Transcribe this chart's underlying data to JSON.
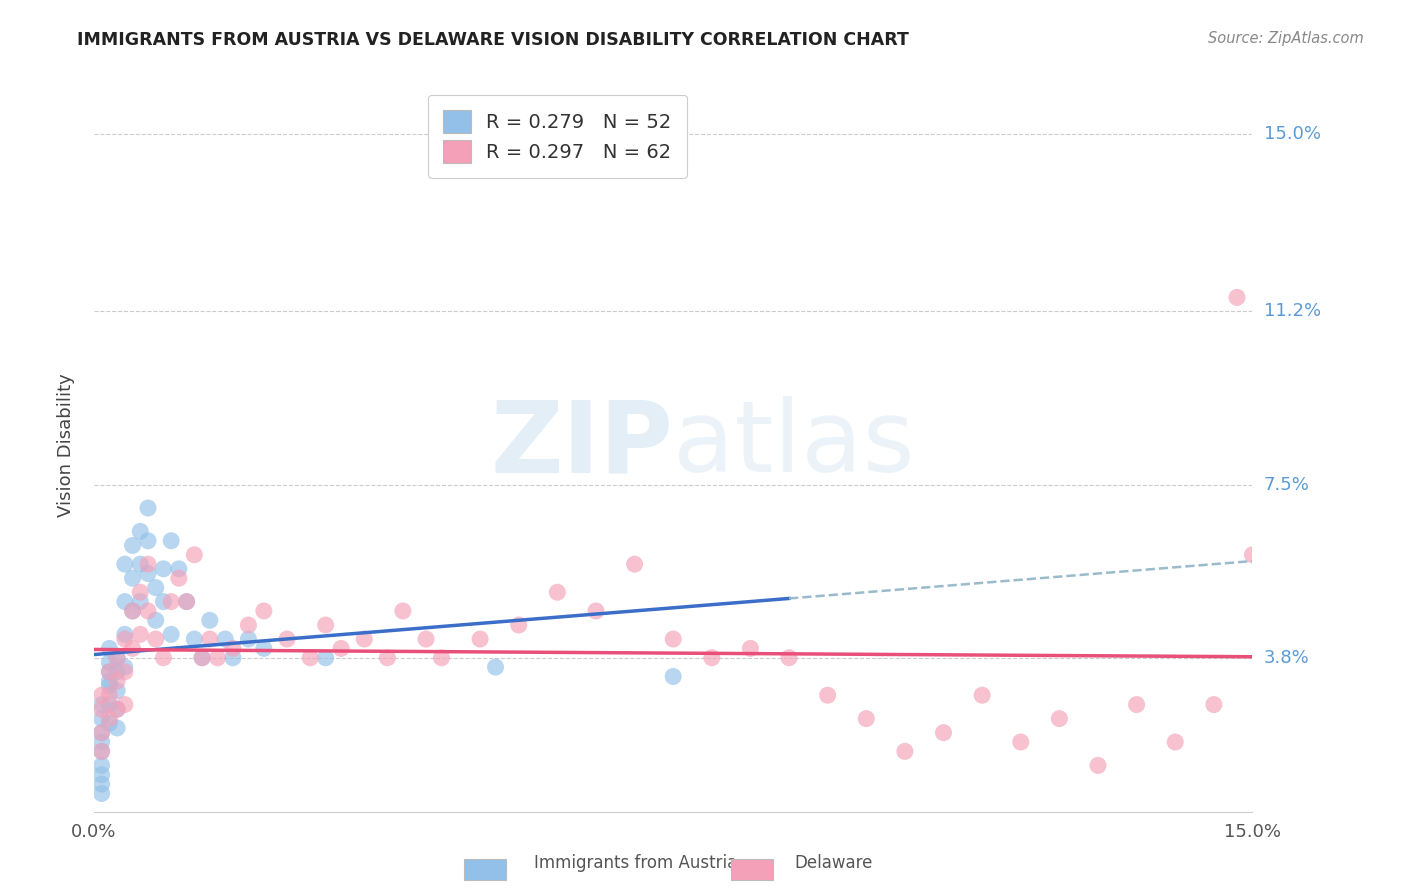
{
  "title": "IMMIGRANTS FROM AUSTRIA VS DELAWARE VISION DISABILITY CORRELATION CHART",
  "source": "Source: ZipAtlas.com",
  "ylabel": "Vision Disability",
  "ytick_labels": [
    "3.8%",
    "7.5%",
    "11.2%",
    "15.0%"
  ],
  "ytick_values": [
    0.038,
    0.075,
    0.112,
    0.15
  ],
  "xmin": 0.0,
  "xmax": 0.15,
  "ymin": 0.005,
  "ymax": 0.162,
  "color_blue": "#92C0E8",
  "color_pink": "#F4A0B8",
  "color_blue_line": "#3B6EC8",
  "color_pink_line": "#E8507A",
  "color_dash": "#99BBCC",
  "color_title": "#222222",
  "color_tick_right": "#5B9BD5",
  "color_source": "#888888",
  "background_color": "#FFFFFF",
  "watermark_color": "#C8DFF0",
  "blue_line_x_end": 0.09,
  "scatter_blue_x": [
    0.001,
    0.001,
    0.001,
    0.001,
    0.001,
    0.001,
    0.001,
    0.001,
    0.001,
    0.002,
    0.002,
    0.002,
    0.002,
    0.002,
    0.002,
    0.002,
    0.003,
    0.003,
    0.003,
    0.003,
    0.003,
    0.004,
    0.004,
    0.004,
    0.004,
    0.005,
    0.005,
    0.005,
    0.006,
    0.006,
    0.006,
    0.007,
    0.007,
    0.007,
    0.008,
    0.008,
    0.009,
    0.009,
    0.01,
    0.01,
    0.011,
    0.012,
    0.013,
    0.014,
    0.015,
    0.017,
    0.018,
    0.02,
    0.022,
    0.03,
    0.052,
    0.075
  ],
  "scatter_blue_y": [
    0.028,
    0.025,
    0.022,
    0.02,
    0.018,
    0.015,
    0.013,
    0.011,
    0.009,
    0.035,
    0.032,
    0.028,
    0.024,
    0.04,
    0.037,
    0.033,
    0.038,
    0.035,
    0.031,
    0.027,
    0.023,
    0.058,
    0.05,
    0.043,
    0.036,
    0.062,
    0.055,
    0.048,
    0.065,
    0.058,
    0.05,
    0.07,
    0.063,
    0.056,
    0.053,
    0.046,
    0.057,
    0.05,
    0.063,
    0.043,
    0.057,
    0.05,
    0.042,
    0.038,
    0.046,
    0.042,
    0.038,
    0.042,
    0.04,
    0.038,
    0.036,
    0.034
  ],
  "scatter_pink_x": [
    0.001,
    0.001,
    0.001,
    0.001,
    0.002,
    0.002,
    0.002,
    0.003,
    0.003,
    0.003,
    0.004,
    0.004,
    0.004,
    0.005,
    0.005,
    0.006,
    0.006,
    0.007,
    0.007,
    0.008,
    0.009,
    0.01,
    0.011,
    0.012,
    0.013,
    0.014,
    0.015,
    0.016,
    0.018,
    0.02,
    0.022,
    0.025,
    0.028,
    0.03,
    0.032,
    0.035,
    0.038,
    0.04,
    0.043,
    0.045,
    0.05,
    0.055,
    0.06,
    0.065,
    0.07,
    0.075,
    0.08,
    0.085,
    0.09,
    0.095,
    0.1,
    0.105,
    0.11,
    0.115,
    0.12,
    0.125,
    0.13,
    0.135,
    0.14,
    0.145,
    0.148,
    0.15
  ],
  "scatter_pink_y": [
    0.03,
    0.027,
    0.022,
    0.018,
    0.035,
    0.03,
    0.025,
    0.038,
    0.033,
    0.027,
    0.042,
    0.035,
    0.028,
    0.048,
    0.04,
    0.052,
    0.043,
    0.058,
    0.048,
    0.042,
    0.038,
    0.05,
    0.055,
    0.05,
    0.06,
    0.038,
    0.042,
    0.038,
    0.04,
    0.045,
    0.048,
    0.042,
    0.038,
    0.045,
    0.04,
    0.042,
    0.038,
    0.048,
    0.042,
    0.038,
    0.042,
    0.045,
    0.052,
    0.048,
    0.058,
    0.042,
    0.038,
    0.04,
    0.038,
    0.03,
    0.025,
    0.018,
    0.022,
    0.03,
    0.02,
    0.025,
    0.015,
    0.028,
    0.02,
    0.028,
    0.115,
    0.06
  ]
}
